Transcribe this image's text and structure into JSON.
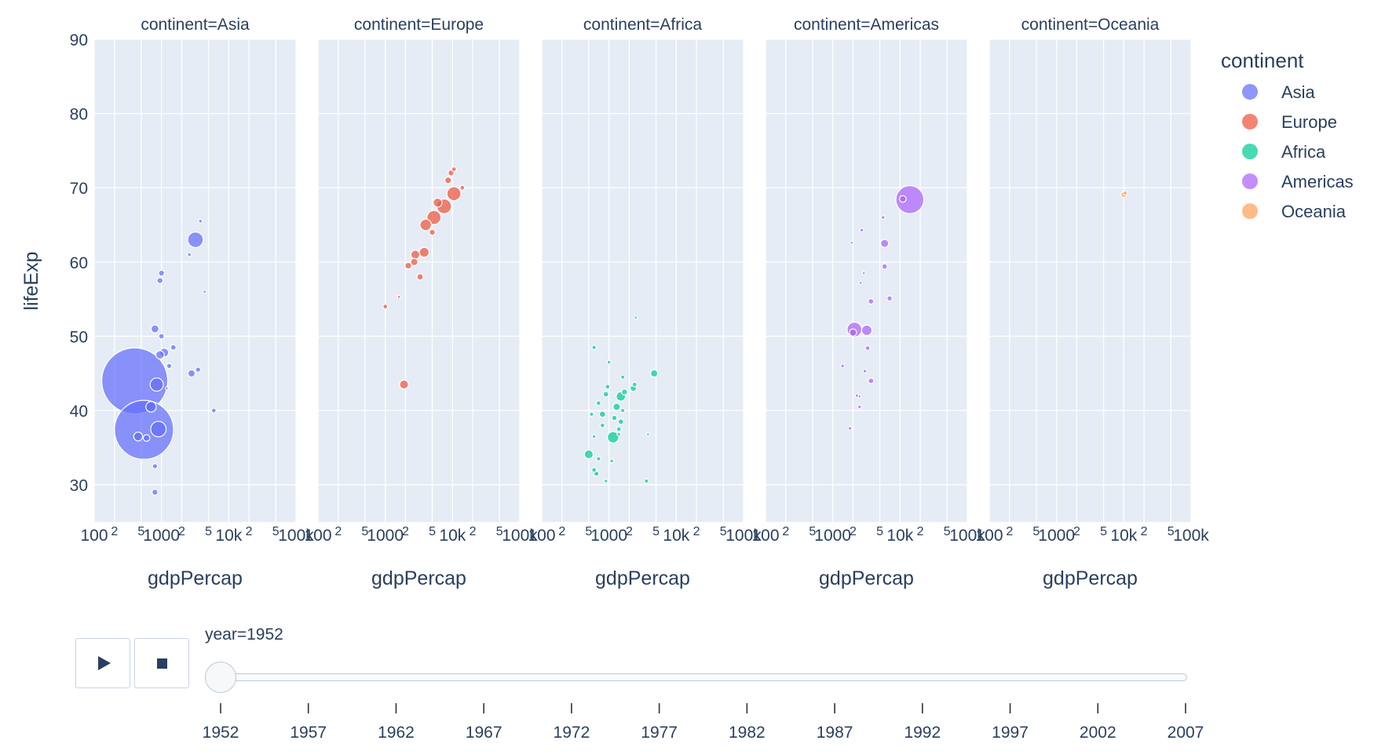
{
  "chart_data": {
    "type": "scatter",
    "xlabel": "gdpPercap",
    "ylabel": "lifeExp",
    "xscale": "log",
    "xlim": [
      100,
      100000
    ],
    "ylim": [
      25,
      90
    ],
    "x_tick_labels": [
      "100",
      "2",
      "5",
      "1000",
      "2",
      "5",
      "10k",
      "2",
      "5",
      "100k"
    ],
    "y_ticks": [
      30,
      40,
      50,
      60,
      70,
      80,
      90
    ],
    "y_tick_labels": [
      "30",
      "40",
      "50",
      "60",
      "70",
      "80",
      "90"
    ],
    "legend_title": "continent",
    "legend_placement": "right",
    "grid": true,
    "colors": {
      "Asia": "#636efa",
      "Europe": "#ef553b",
      "Africa": "#00cc96",
      "Americas": "#ab63fa",
      "Oceania": "#ffa15a"
    },
    "facets": [
      {
        "name": "Asia",
        "title": "continent=Asia",
        "points": [
          {
            "x": 400,
            "y": 44,
            "size": 1000
          },
          {
            "x": 550,
            "y": 37.4,
            "size": 800
          },
          {
            "x": 3200,
            "y": 63,
            "size": 55
          },
          {
            "x": 850,
            "y": 43.5,
            "size": 40
          },
          {
            "x": 900,
            "y": 37.5,
            "size": 55
          },
          {
            "x": 700,
            "y": 40.5,
            "size": 25
          },
          {
            "x": 1100,
            "y": 47.8,
            "size": 18
          },
          {
            "x": 800,
            "y": 51,
            "size": 14
          },
          {
            "x": 950,
            "y": 47.5,
            "size": 16
          },
          {
            "x": 450,
            "y": 36.5,
            "size": 18
          },
          {
            "x": 600,
            "y": 36.3,
            "size": 10
          },
          {
            "x": 2800,
            "y": 45,
            "size": 12
          },
          {
            "x": 1000,
            "y": 58.5,
            "size": 8
          },
          {
            "x": 950,
            "y": 57.5,
            "size": 8
          },
          {
            "x": 1000,
            "y": 50,
            "size": 7
          },
          {
            "x": 1500,
            "y": 48.5,
            "size": 7
          },
          {
            "x": 1300,
            "y": 46,
            "size": 6
          },
          {
            "x": 3500,
            "y": 45.5,
            "size": 6
          },
          {
            "x": 800,
            "y": 32.5,
            "size": 6
          },
          {
            "x": 800,
            "y": 29,
            "size": 8
          },
          {
            "x": 6000,
            "y": 40,
            "size": 5
          },
          {
            "x": 2600,
            "y": 61,
            "size": 3
          },
          {
            "x": 3800,
            "y": 65.5,
            "size": 3
          },
          {
            "x": 4400,
            "y": 56,
            "size": 2
          },
          {
            "x": 1200,
            "y": 43,
            "size": 2
          }
        ]
      },
      {
        "name": "Europe",
        "title": "continent=Europe",
        "points": [
          {
            "x": 10500,
            "y": 69.2,
            "size": 45
          },
          {
            "x": 7500,
            "y": 67.5,
            "size": 50
          },
          {
            "x": 5300,
            "y": 66,
            "size": 45
          },
          {
            "x": 4000,
            "y": 65,
            "size": 30
          },
          {
            "x": 3800,
            "y": 61.3,
            "size": 22
          },
          {
            "x": 2800,
            "y": 61,
            "size": 18
          },
          {
            "x": 2700,
            "y": 60,
            "size": 12
          },
          {
            "x": 2200,
            "y": 59.5,
            "size": 10
          },
          {
            "x": 3300,
            "y": 58,
            "size": 9
          },
          {
            "x": 1900,
            "y": 43.5,
            "size": 18
          },
          {
            "x": 8600,
            "y": 71,
            "size": 10
          },
          {
            "x": 9500,
            "y": 72,
            "size": 8
          },
          {
            "x": 10500,
            "y": 72.5,
            "size": 5
          },
          {
            "x": 14000,
            "y": 70,
            "size": 5
          },
          {
            "x": 6000,
            "y": 68,
            "size": 18
          },
          {
            "x": 5000,
            "y": 64,
            "size": 8
          },
          {
            "x": 1000,
            "y": 54,
            "size": 5
          },
          {
            "x": 1600,
            "y": 55.3,
            "size": 2
          }
        ]
      },
      {
        "name": "Africa",
        "title": "continent=Africa",
        "points": [
          {
            "x": 1150,
            "y": 36.4,
            "size": 30
          },
          {
            "x": 4700,
            "y": 45,
            "size": 12
          },
          {
            "x": 500,
            "y": 34.1,
            "size": 18
          },
          {
            "x": 1500,
            "y": 41.9,
            "size": 20
          },
          {
            "x": 1300,
            "y": 40.5,
            "size": 12
          },
          {
            "x": 1700,
            "y": 42.5,
            "size": 8
          },
          {
            "x": 2300,
            "y": 43,
            "size": 9
          },
          {
            "x": 2400,
            "y": 43.5,
            "size": 5
          },
          {
            "x": 800,
            "y": 39.5,
            "size": 9
          },
          {
            "x": 900,
            "y": 42.2,
            "size": 7
          },
          {
            "x": 950,
            "y": 43.2,
            "size": 5
          },
          {
            "x": 700,
            "y": 41,
            "size": 5
          },
          {
            "x": 800,
            "y": 38,
            "size": 5
          },
          {
            "x": 1500,
            "y": 38.5,
            "size": 7
          },
          {
            "x": 1200,
            "y": 39,
            "size": 6
          },
          {
            "x": 1400,
            "y": 37.5,
            "size": 5
          },
          {
            "x": 600,
            "y": 32,
            "size": 5
          },
          {
            "x": 650,
            "y": 31.5,
            "size": 6
          },
          {
            "x": 700,
            "y": 33.5,
            "size": 4
          },
          {
            "x": 1600,
            "y": 44.5,
            "size": 4
          },
          {
            "x": 1000,
            "y": 46.5,
            "size": 3
          },
          {
            "x": 600,
            "y": 48.5,
            "size": 4
          },
          {
            "x": 1600,
            "y": 40,
            "size": 4
          },
          {
            "x": 3600,
            "y": 30.5,
            "size": 4
          },
          {
            "x": 550,
            "y": 39.5,
            "size": 4
          },
          {
            "x": 1100,
            "y": 33.2,
            "size": 3
          },
          {
            "x": 900,
            "y": 30.5,
            "size": 3
          },
          {
            "x": 600,
            "y": 36.5,
            "size": 3
          },
          {
            "x": 2500,
            "y": 52.5,
            "size": 2
          },
          {
            "x": 1400,
            "y": 36.8,
            "size": 3
          },
          {
            "x": 3800,
            "y": 36.8,
            "size": 2
          }
        ]
      },
      {
        "name": "Americas",
        "title": "continent=Americas",
        "points": [
          {
            "x": 14000,
            "y": 68.4,
            "size": 180
          },
          {
            "x": 2100,
            "y": 50.9,
            "size": 50
          },
          {
            "x": 3200,
            "y": 50.8,
            "size": 25
          },
          {
            "x": 5900,
            "y": 62.5,
            "size": 15
          },
          {
            "x": 5900,
            "y": 59.4,
            "size": 7
          },
          {
            "x": 3700,
            "y": 54.7,
            "size": 7
          },
          {
            "x": 7000,
            "y": 55.1,
            "size": 6
          },
          {
            "x": 3700,
            "y": 44,
            "size": 7
          },
          {
            "x": 3300,
            "y": 48.4,
            "size": 5
          },
          {
            "x": 2000,
            "y": 50.5,
            "size": 12
          },
          {
            "x": 11000,
            "y": 68.5,
            "size": 10
          },
          {
            "x": 2300,
            "y": 42,
            "size": 3
          },
          {
            "x": 2500,
            "y": 40.5,
            "size": 3
          },
          {
            "x": 1800,
            "y": 37.6,
            "size": 3
          },
          {
            "x": 1400,
            "y": 46,
            "size": 3
          },
          {
            "x": 3000,
            "y": 45.3,
            "size": 3
          },
          {
            "x": 5600,
            "y": 66,
            "size": 3
          },
          {
            "x": 2700,
            "y": 64.3,
            "size": 3
          },
          {
            "x": 1900,
            "y": 62.6,
            "size": 2
          },
          {
            "x": 2600,
            "y": 57.2,
            "size": 2
          },
          {
            "x": 2900,
            "y": 58.5,
            "size": 2
          },
          {
            "x": 2500,
            "y": 41.9,
            "size": 2
          }
        ]
      },
      {
        "name": "Oceania",
        "title": "continent=Oceania",
        "points": [
          {
            "x": 10000,
            "y": 69.1,
            "size": 8
          },
          {
            "x": 10500,
            "y": 69.3,
            "size": 4
          }
        ]
      }
    ]
  },
  "slider": {
    "label": "year=1952",
    "current": "1952",
    "ticks": [
      "1952",
      "1957",
      "1962",
      "1967",
      "1972",
      "1977",
      "1982",
      "1987",
      "1992",
      "1997",
      "2002",
      "2007"
    ]
  },
  "controls": {
    "play": "play-icon",
    "stop": "stop-icon"
  }
}
